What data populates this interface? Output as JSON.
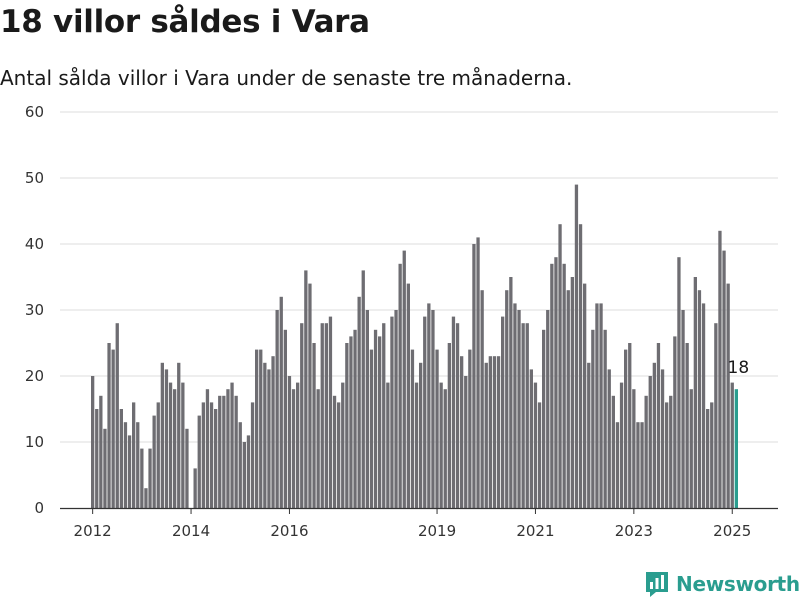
{
  "title": "18 villor såldes i Vara",
  "subtitle": "Antal sålda villor i Vara under de senaste tre månaderna.",
  "brand": "Newsworthy",
  "colors": {
    "bar": "#6e6d72",
    "highlight": "#2a9d8f",
    "grid": "#dddddd",
    "brand": "#2a9d8f"
  },
  "chart_data": {
    "type": "bar",
    "title": "18 villor såldes i Vara",
    "subtitle": "Antal sålda villor i Vara under de senaste tre månaderna.",
    "xlabel": "",
    "ylabel": "",
    "ylim": [
      0,
      60
    ],
    "yticks": [
      "0",
      "10",
      "20",
      "30",
      "40",
      "50",
      "60"
    ],
    "xticks": [
      {
        "label": "2012",
        "index": 0
      },
      {
        "label": "2014",
        "index": 24
      },
      {
        "label": "2016",
        "index": 48
      },
      {
        "label": "2019",
        "index": 84
      },
      {
        "label": "2021",
        "index": 108
      },
      {
        "label": "2023",
        "index": 132
      },
      {
        "label": "2025",
        "index": 156
      }
    ],
    "grid": true,
    "legend": "none",
    "x_start": "2012-01",
    "frequency": "monthly",
    "values": [
      20,
      15,
      17,
      12,
      25,
      24,
      28,
      15,
      13,
      11,
      16,
      13,
      9,
      3,
      9,
      14,
      16,
      22,
      21,
      19,
      18,
      22,
      19,
      12,
      0,
      6,
      14,
      16,
      18,
      16,
      15,
      17,
      17,
      18,
      19,
      17,
      13,
      10,
      11,
      16,
      24,
      24,
      22,
      21,
      23,
      30,
      32,
      27,
      20,
      18,
      19,
      28,
      36,
      34,
      25,
      18,
      28,
      28,
      29,
      17,
      16,
      19,
      25,
      26,
      27,
      32,
      36,
      30,
      24,
      27,
      26,
      28,
      19,
      29,
      30,
      37,
      39,
      34,
      24,
      19,
      22,
      29,
      31,
      30,
      24,
      19,
      18,
      25,
      29,
      28,
      23,
      20,
      24,
      40,
      41,
      33,
      22,
      23,
      23,
      23,
      29,
      33,
      35,
      31,
      30,
      28,
      28,
      21,
      19,
      16,
      27,
      30,
      37,
      38,
      43,
      37,
      33,
      35,
      49,
      43,
      34,
      22,
      27,
      31,
      31,
      27,
      21,
      17,
      13,
      19,
      24,
      25,
      18,
      13,
      13,
      17,
      20,
      22,
      25,
      21,
      16,
      17,
      26,
      38,
      30,
      25,
      18,
      35,
      33,
      31,
      15,
      16,
      28,
      42,
      39,
      34,
      19,
      18
    ],
    "highlight_index": 157,
    "annotations": [
      {
        "index": 157,
        "text": "18"
      }
    ]
  }
}
